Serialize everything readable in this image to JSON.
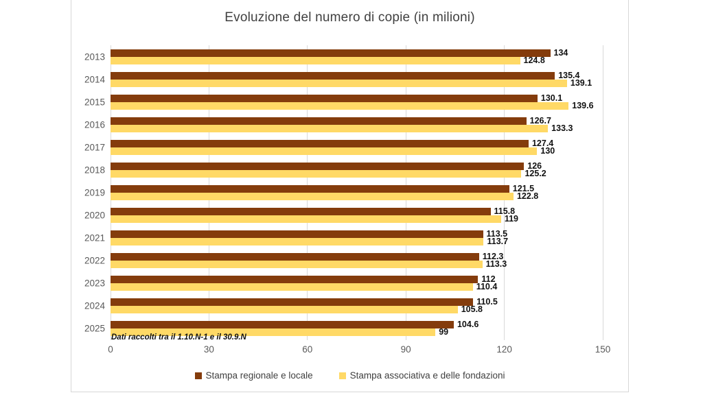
{
  "chart_data": {
    "type": "bar",
    "orientation": "horizontal",
    "title": "Evoluzione del numero di copie (in milioni)",
    "footnote": "Dati raccolti tra il 1.10.N-1 e il 30.9.N",
    "categories": [
      "2013",
      "2014",
      "2015",
      "2016",
      "2017",
      "2018",
      "2019",
      "2020",
      "2021",
      "2022",
      "2023",
      "2024",
      "2025"
    ],
    "series": [
      {
        "name": "Stampa regionale e locale",
        "color": "#843C0C",
        "values": [
          134,
          135.4,
          130.1,
          126.7,
          127.4,
          126,
          121.5,
          115.8,
          113.5,
          112.3,
          112,
          110.5,
          104.6
        ]
      },
      {
        "name": "Stampa associativa e delle fondazioni",
        "color": "#FFD966",
        "values": [
          124.8,
          139.1,
          139.6,
          133.3,
          130,
          125.2,
          122.8,
          119,
          113.7,
          113.3,
          110.4,
          105.8,
          99
        ]
      }
    ],
    "xlabel": "",
    "ylabel": "",
    "xlim": [
      0,
      150
    ],
    "x_ticks": [
      0,
      30,
      60,
      90,
      120,
      150
    ],
    "grid": true,
    "legend_position": "bottom",
    "colors": {
      "grid": "#D9D9D9",
      "axis_text": "#595959",
      "title_text": "#404040",
      "data_label_text": "#111111"
    }
  }
}
